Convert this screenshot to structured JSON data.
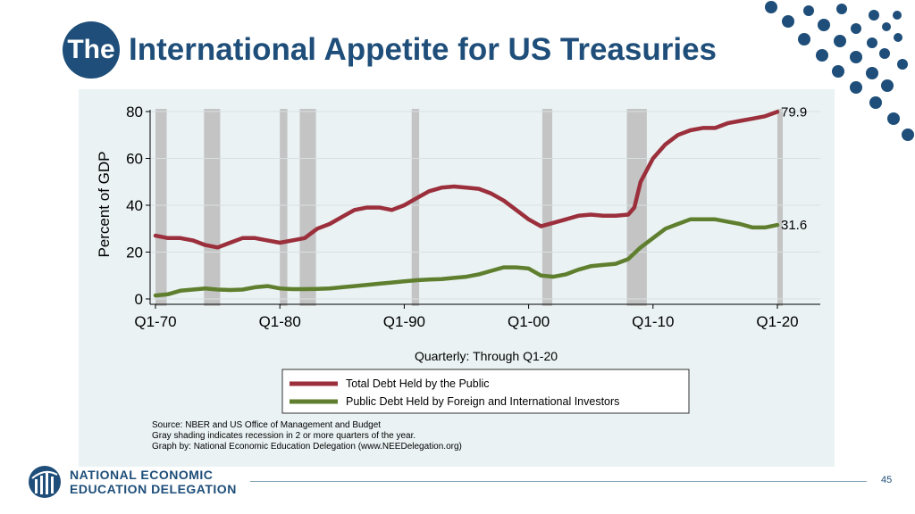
{
  "slide": {
    "title_prefix": "The",
    "title": "International Appetite for US Treasuries",
    "page_number": "45",
    "org_name_line1": "NATIONAL ECONOMIC",
    "org_name_line2": "EDUCATION DELEGATION",
    "colors": {
      "brand": "#1e4e79",
      "panel": "#eaf2f3"
    }
  },
  "chart_data": {
    "type": "line",
    "xlabel": "Quarterly: Through Q1-20",
    "ylabel": "Percent of GDP",
    "xlim": [
      1970,
      2020
    ],
    "ylim": [
      0,
      80
    ],
    "x_ticks": [
      1970,
      1980,
      1990,
      2000,
      2010,
      2020
    ],
    "x_tick_labels": [
      "Q1-70",
      "Q1-80",
      "Q1-90",
      "Q1-00",
      "Q1-10",
      "Q1-20"
    ],
    "y_ticks": [
      0,
      20,
      40,
      60,
      80
    ],
    "y_tick_labels": [
      "0",
      "20",
      "40",
      "60",
      "80"
    ],
    "grid": true,
    "legend_position": "bottom",
    "recessions": [
      [
        1970.0,
        1970.9
      ],
      [
        1973.9,
        1975.2
      ],
      [
        1980.0,
        1980.6
      ],
      [
        1981.6,
        1982.9
      ],
      [
        1990.6,
        1991.2
      ],
      [
        2001.1,
        2001.9
      ],
      [
        2007.9,
        2009.5
      ],
      [
        2020.0,
        2020.4
      ]
    ],
    "series": [
      {
        "name": "Total Debt Held by the Public",
        "color": "#9b2f3c",
        "end_label": "79.9",
        "x": [
          1970,
          1971,
          1972,
          1973,
          1974,
          1975,
          1976,
          1977,
          1978,
          1979,
          1980,
          1981,
          1982,
          1983,
          1984,
          1985,
          1986,
          1987,
          1988,
          1989,
          1990,
          1991,
          1992,
          1993,
          1994,
          1995,
          1996,
          1997,
          1998,
          1999,
          2000,
          2001,
          2002,
          2003,
          2004,
          2005,
          2006,
          2007,
          2008,
          2008.5,
          2009,
          2010,
          2011,
          2012,
          2013,
          2014,
          2015,
          2016,
          2017,
          2018,
          2019,
          2020
        ],
        "values": [
          27,
          26,
          26,
          25,
          23,
          22,
          24,
          26,
          26,
          25,
          24,
          25,
          26,
          30,
          32,
          35,
          38,
          39,
          39,
          38,
          40,
          43,
          46,
          47.5,
          48,
          47.5,
          47,
          45,
          42,
          38,
          34,
          31,
          32.5,
          34,
          35.5,
          36,
          35.5,
          35.5,
          36,
          39,
          50,
          60,
          66,
          70,
          72,
          73,
          73,
          75,
          76,
          77,
          78,
          79.9
        ]
      },
      {
        "name": "Public Debt Held by Foreign and International Investors",
        "color": "#5f7f2f",
        "end_label": "31.6",
        "x": [
          1970,
          1971,
          1972,
          1973,
          1974,
          1975,
          1976,
          1977,
          1978,
          1979,
          1980,
          1981,
          1982,
          1983,
          1984,
          1985,
          1986,
          1987,
          1988,
          1989,
          1990,
          1991,
          1992,
          1993,
          1994,
          1995,
          1996,
          1997,
          1998,
          1999,
          2000,
          2001,
          2002,
          2003,
          2004,
          2005,
          2006,
          2007,
          2008,
          2009,
          2010,
          2011,
          2012,
          2013,
          2014,
          2015,
          2016,
          2017,
          2018,
          2019,
          2020
        ],
        "values": [
          1.5,
          2,
          3.5,
          4,
          4.5,
          4,
          3.8,
          4,
          5,
          5.5,
          4.5,
          4.2,
          4.2,
          4.3,
          4.5,
          5,
          5.5,
          6,
          6.5,
          7,
          7.5,
          8,
          8.3,
          8.5,
          9,
          9.5,
          10.5,
          12,
          13.5,
          13.5,
          13,
          10,
          9.5,
          10.5,
          12.5,
          14,
          14.5,
          15,
          17,
          22,
          26,
          30,
          32,
          34,
          34,
          34,
          33,
          32,
          30.5,
          30.5,
          31.6
        ]
      }
    ],
    "notes": [
      "Source: NBER and US Office of Management and Budget",
      "Gray shading indicates recession in 2 or more quarters of the year.",
      "Graph by: National Economic Education Delegation (www.NEEDelegation.org)"
    ]
  }
}
